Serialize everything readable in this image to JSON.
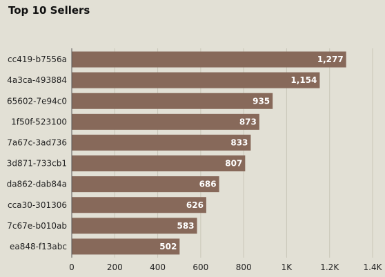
{
  "chart_data": {
    "type": "bar",
    "orientation": "horizontal",
    "title": "Top 10 Sellers",
    "categories": [
      "cc419-b7556a",
      "4a3ca-493884",
      "65602-7e94c0",
      "1f50f-523100",
      "7a67c-3ad736",
      "3d871-733cb1",
      "da862-dab84a",
      "cca30-301306",
      "7c67e-b010ab",
      "ea848-f13abc"
    ],
    "values": [
      1277,
      1154,
      935,
      873,
      833,
      807,
      686,
      626,
      583,
      502
    ],
    "value_labels": [
      "1,277",
      "1,154",
      "935",
      "873",
      "833",
      "807",
      "686",
      "626",
      "583",
      "502"
    ],
    "xlim": [
      0,
      1400
    ],
    "x_ticks": [
      0,
      200,
      400,
      600,
      800,
      1000,
      1200,
      1400
    ],
    "x_tick_labels": [
      "0",
      "200",
      "400",
      "600",
      "800",
      "1K",
      "1.2K",
      "1.4K"
    ],
    "grid": true,
    "bar_color": "#87695a",
    "background": "#e2e0d5"
  }
}
